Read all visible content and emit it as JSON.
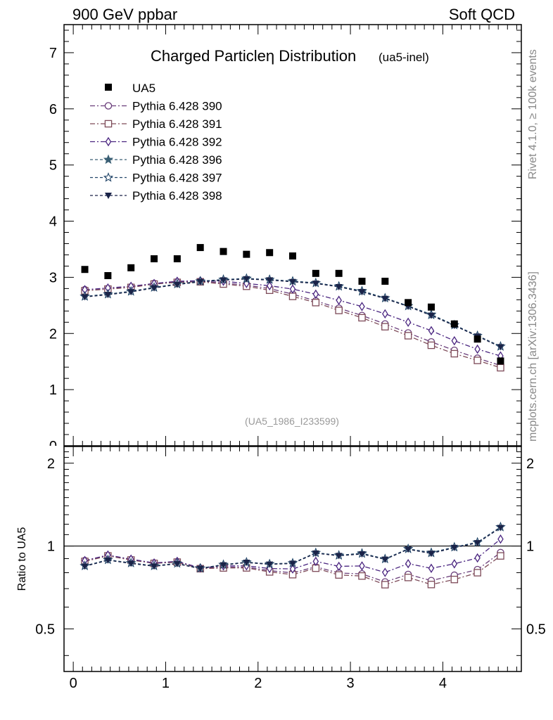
{
  "header": {
    "left": "900 GeV ppbar",
    "right": "Soft QCD"
  },
  "side": {
    "rivet": "Rivet 4.1.0, ≥ 100k events",
    "mcplots": "mcplots.cern.ch [arXiv:1306.3436]"
  },
  "chart_data": {
    "type": "scatter",
    "title": "Charged Particleη Distribution",
    "subtitle": "(ua5-inel)",
    "watermark": "(UA5_1986_I233599)",
    "xlabel": "",
    "ylabel_top": "",
    "ylabel_ratio": "Ratio to UA5",
    "xlim": [
      -0.1,
      4.85
    ],
    "ylim_top": [
      0,
      7.5
    ],
    "ylim_ratio": [
      0.35,
      2.3
    ],
    "x_ticks": [
      "0",
      "1",
      "2",
      "3",
      "4"
    ],
    "y_ticks_top": [
      "1",
      "2",
      "3",
      "4",
      "5",
      "6",
      "7"
    ],
    "y_tick_partial": "0",
    "y_ticks_ratio": [
      "0.5",
      "1",
      "2"
    ],
    "x": [
      0.125,
      0.375,
      0.625,
      0.875,
      1.125,
      1.375,
      1.625,
      1.875,
      2.125,
      2.375,
      2.625,
      2.875,
      3.125,
      3.375,
      3.625,
      3.875,
      4.125,
      4.375,
      4.625
    ],
    "data": {
      "name": "UA5",
      "values": [
        3.14,
        3.03,
        3.17,
        3.33,
        3.33,
        3.53,
        3.46,
        3.41,
        3.44,
        3.38,
        3.07,
        3.07,
        2.93,
        2.93,
        2.55,
        2.47,
        2.17,
        1.9,
        1.51
      ]
    },
    "series": [
      {
        "name": "Pythia 6.428 390",
        "color": "#6a3d7a",
        "marker": "circle-open",
        "dash": "7,3,2,3",
        "values": [
          2.78,
          2.8,
          2.83,
          2.89,
          2.92,
          2.93,
          2.9,
          2.86,
          2.8,
          2.7,
          2.58,
          2.45,
          2.32,
          2.17,
          2.01,
          1.85,
          1.7,
          1.56,
          1.43
        ]
      },
      {
        "name": "Pythia 6.428 391",
        "color": "#7d4a58",
        "marker": "square-open",
        "dash": "7,3,2,3",
        "values": [
          2.76,
          2.79,
          2.82,
          2.88,
          2.91,
          2.92,
          2.88,
          2.84,
          2.77,
          2.66,
          2.55,
          2.41,
          2.28,
          2.12,
          1.96,
          1.79,
          1.64,
          1.52,
          1.39
        ]
      },
      {
        "name": "Pythia 6.428 392",
        "color": "#4a2580",
        "marker": "diamond-open",
        "dash": "7,3,2,3",
        "values": [
          2.78,
          2.81,
          2.84,
          2.89,
          2.93,
          2.94,
          2.93,
          2.89,
          2.85,
          2.79,
          2.7,
          2.59,
          2.48,
          2.35,
          2.2,
          2.05,
          1.87,
          1.72,
          1.6
        ]
      },
      {
        "name": "Pythia 6.428 396",
        "color": "#3a5f74",
        "marker": "star-filled",
        "dash": "4,3",
        "values": [
          2.66,
          2.7,
          2.75,
          2.82,
          2.88,
          2.93,
          2.96,
          2.97,
          2.96,
          2.93,
          2.9,
          2.84,
          2.76,
          2.63,
          2.49,
          2.34,
          2.15,
          1.96,
          1.77
        ]
      },
      {
        "name": "Pythia 6.428 397",
        "color": "#24476a",
        "marker": "star-open",
        "dash": "4,3",
        "values": [
          2.66,
          2.7,
          2.75,
          2.82,
          2.88,
          2.93,
          2.96,
          2.98,
          2.96,
          2.93,
          2.9,
          2.84,
          2.75,
          2.63,
          2.49,
          2.33,
          2.15,
          1.96,
          1.77
        ]
      },
      {
        "name": "Pythia 6.428 398",
        "color": "#1a2348",
        "marker": "triangle-down-filled",
        "dash": "4,3",
        "values": [
          2.65,
          2.69,
          2.74,
          2.81,
          2.87,
          2.92,
          2.95,
          2.97,
          2.95,
          2.92,
          2.89,
          2.83,
          2.74,
          2.62,
          2.48,
          2.32,
          2.14,
          1.95,
          1.76
        ]
      }
    ]
  }
}
